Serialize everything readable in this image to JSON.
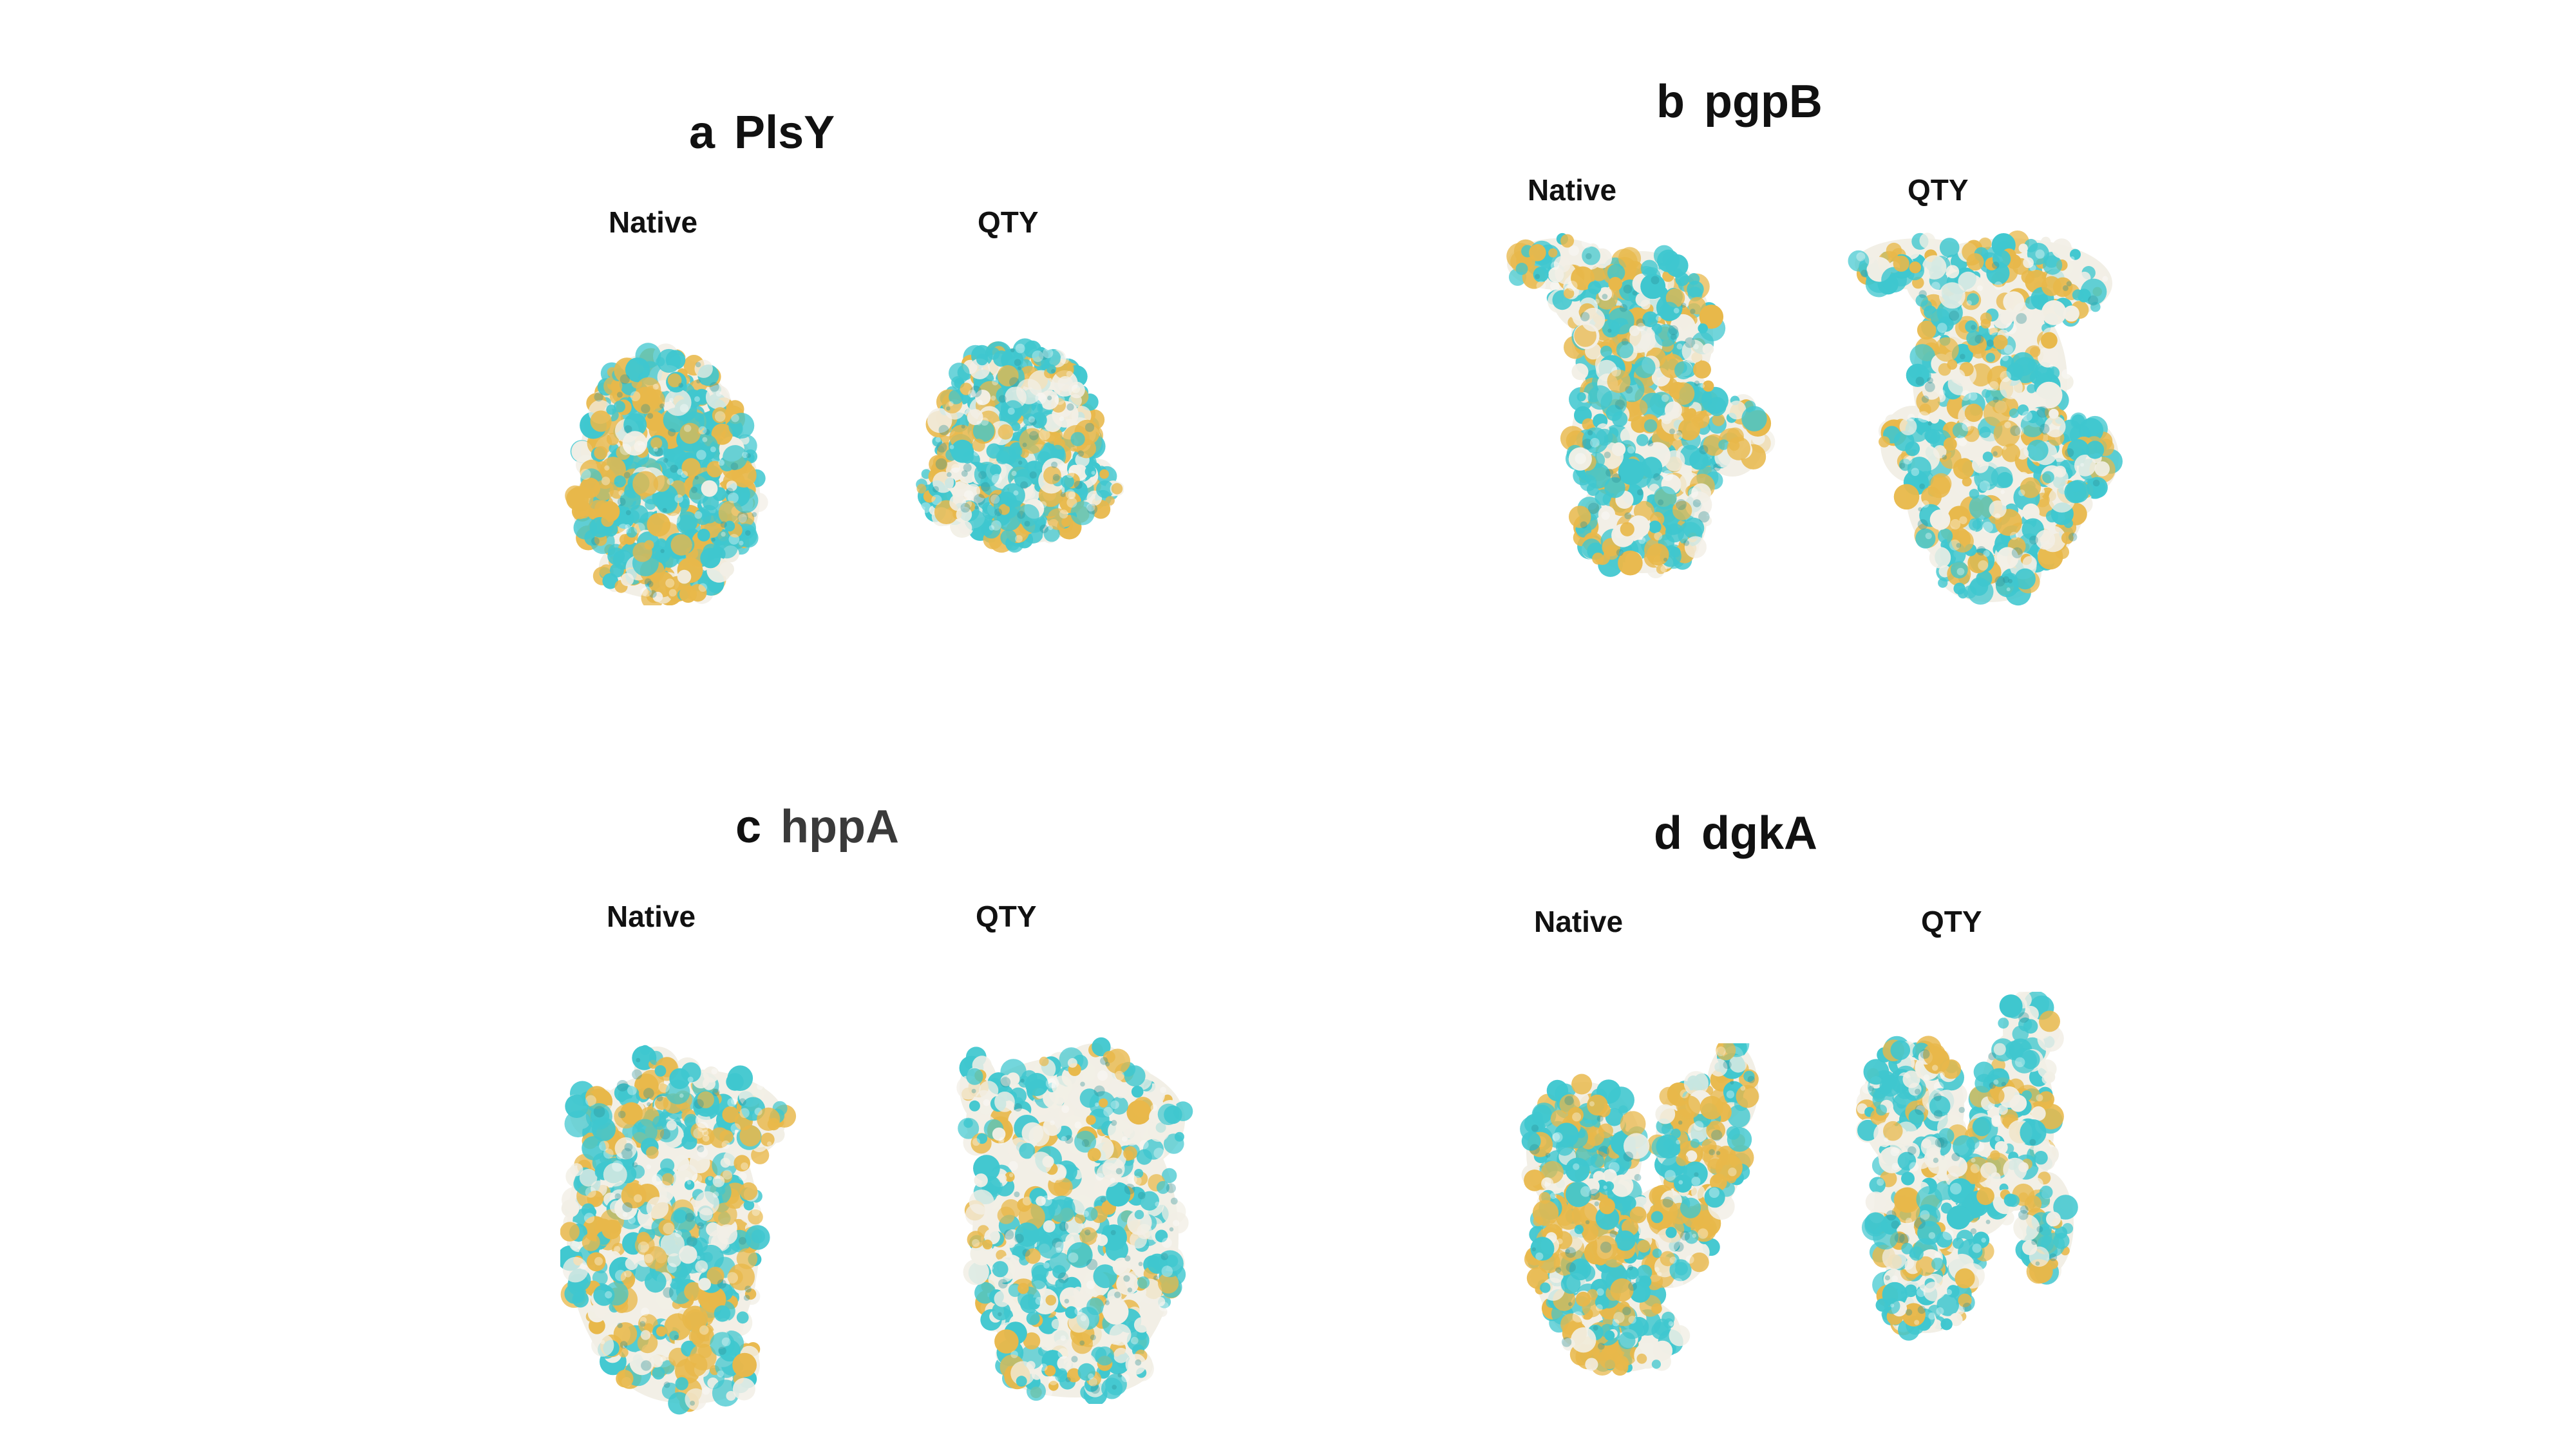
{
  "colors": {
    "background": "#ffffff",
    "hydrophobic": "#e8b84a",
    "hydrophilic": "#3fc7cf",
    "neutral": "#f2efe6"
  },
  "panels": [
    {
      "letter": "a",
      "name": "PlsY",
      "labels": {
        "native": "Native",
        "qty": "QTY"
      },
      "native_image": "protein-surface-native-plsy",
      "qty_image": "protein-surface-qty-plsy"
    },
    {
      "letter": "b",
      "name": "pgpB",
      "labels": {
        "native": "Native",
        "qty": "QTY"
      },
      "native_image": "protein-surface-native-pgpb",
      "qty_image": "protein-surface-qty-pgpb"
    },
    {
      "letter": "c",
      "name": "hppA",
      "labels": {
        "native": "Native",
        "qty": "QTY"
      },
      "native_image": "protein-surface-native-hppa",
      "qty_image": "protein-surface-qty-hppa"
    },
    {
      "letter": "d",
      "name": "dgkA",
      "labels": {
        "native": "Native",
        "qty": "QTY"
      },
      "native_image": "protein-surface-native-dgka",
      "qty_image": "protein-surface-qty-dgka"
    }
  ]
}
